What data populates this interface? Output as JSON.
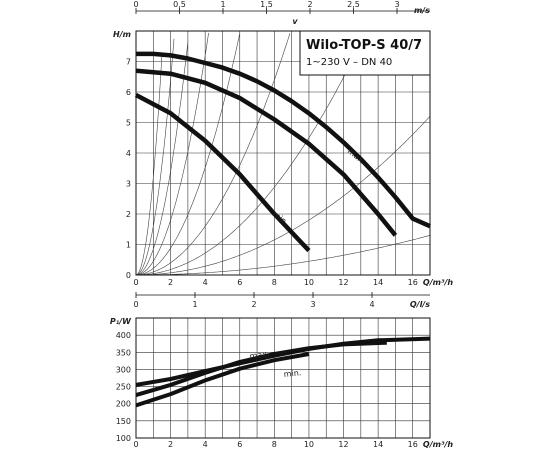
{
  "title": "Wilo-TOP-S 40/7",
  "subtitle": "1~230 V – DN 40",
  "chart_data": [
    {
      "type": "line",
      "name": "head",
      "xlabel": "Q/m³/h",
      "ylabel": "H/m",
      "xlim": [
        0,
        17
      ],
      "ylim": [
        0,
        8
      ],
      "x_ticks": [
        0,
        2,
        4,
        6,
        8,
        10,
        12,
        14,
        16
      ],
      "y_ticks": [
        0,
        1,
        2,
        3,
        4,
        5,
        6,
        7
      ],
      "top_axis": {
        "label": "v",
        "unit": "m/s",
        "ticks": [
          "0",
          "0,5",
          "1",
          "1,5",
          "2",
          "2,5",
          "3"
        ]
      },
      "bottom2_axis": {
        "unit": "Q/l/s",
        "ticks": [
          "0",
          "1",
          "2",
          "3",
          "4"
        ]
      },
      "series": [
        {
          "name": "max.",
          "x": [
            0,
            1,
            2,
            3,
            4,
            5,
            6,
            7,
            8,
            9,
            10,
            11,
            12,
            13,
            14,
            15,
            16,
            17
          ],
          "y": [
            7.25,
            7.25,
            7.2,
            7.1,
            6.95,
            6.8,
            6.6,
            6.35,
            6.05,
            5.7,
            5.3,
            4.85,
            4.35,
            3.8,
            3.2,
            2.55,
            1.85,
            1.6
          ]
        },
        {
          "name": "",
          "x": [
            0,
            2,
            4,
            6,
            8,
            10,
            12,
            14,
            15
          ],
          "y": [
            6.7,
            6.6,
            6.3,
            5.8,
            5.1,
            4.3,
            3.3,
            2.0,
            1.3
          ]
        },
        {
          "name": "min.",
          "x": [
            0,
            2,
            4,
            6,
            8,
            10
          ],
          "y": [
            5.9,
            5.3,
            4.4,
            3.3,
            2.0,
            0.8
          ]
        }
      ],
      "annotations": [
        "max.",
        "min."
      ]
    },
    {
      "type": "line",
      "name": "power",
      "xlabel": "Q/m³/h",
      "ylabel": "P₁/W",
      "xlim": [
        0,
        17
      ],
      "ylim": [
        100,
        450
      ],
      "x_ticks": [
        0,
        2,
        4,
        6,
        8,
        10,
        12,
        14,
        16
      ],
      "y_ticks": [
        100,
        150,
        200,
        250,
        300,
        350,
        400
      ],
      "series": [
        {
          "name": "max.",
          "x": [
            0,
            2,
            4,
            6,
            8,
            10,
            12,
            14,
            17
          ],
          "y": [
            255,
            272,
            295,
            318,
            340,
            360,
            375,
            385,
            390
          ]
        },
        {
          "name": "",
          "x": [
            0,
            2,
            4,
            6,
            8,
            10,
            12,
            14.5
          ],
          "y": [
            225,
            255,
            290,
            322,
            345,
            362,
            373,
            378
          ]
        },
        {
          "name": "min.",
          "x": [
            0,
            2,
            4,
            6,
            8,
            10
          ],
          "y": [
            195,
            228,
            268,
            302,
            327,
            345
          ]
        }
      ],
      "annotations": [
        "max.",
        "min."
      ]
    }
  ]
}
